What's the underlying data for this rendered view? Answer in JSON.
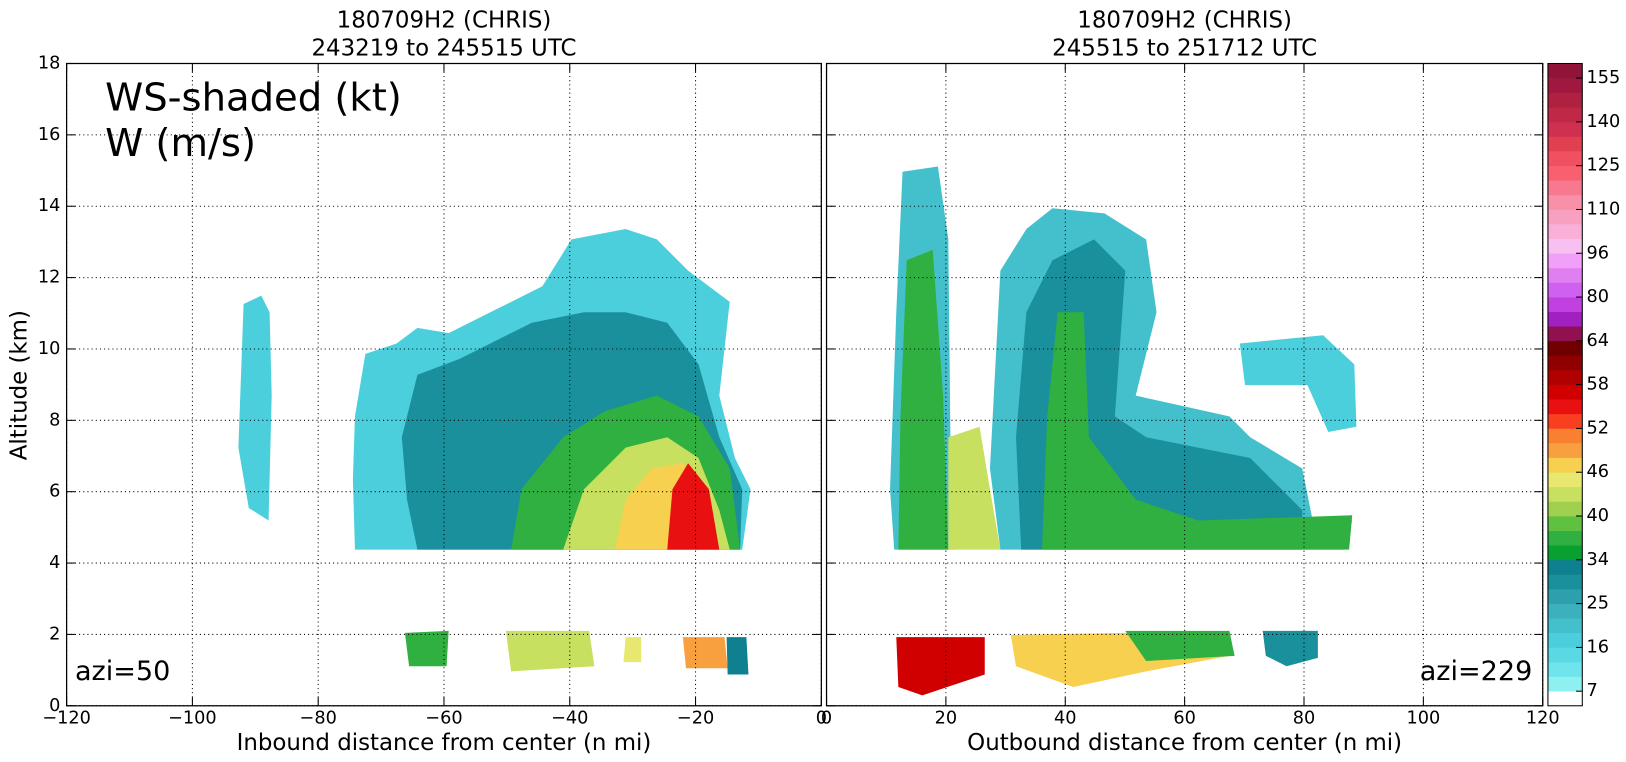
{
  "chart_data": [
    {
      "type": "contour",
      "title": [
        "180709H2 (CHRIS)",
        "243219 to 245515 UTC"
      ],
      "xlabel": "Inbound distance from center (n mi)",
      "ylabel": "Altitude (km)",
      "legend_text": [
        "WS-shaded (kt)",
        "W (m/s)"
      ],
      "annotation": "azi=50",
      "xlim": [
        -120,
        0
      ],
      "xticks": [
        {
          "value": -120,
          "label": "−120"
        },
        {
          "value": -100,
          "label": "−100"
        },
        {
          "value": -80,
          "label": "−80"
        },
        {
          "value": -60,
          "label": "−60"
        },
        {
          "value": -40,
          "label": "−40"
        },
        {
          "value": -20,
          "label": "−20"
        },
        0
      ],
      "ylim": [
        0,
        18
      ],
      "yticks": [
        0,
        2,
        4,
        6,
        8,
        10,
        12,
        14,
        16,
        18
      ],
      "grid": true
    },
    {
      "type": "contour",
      "title": [
        "180709H2 (CHRIS)",
        "245515 to 251712 UTC"
      ],
      "xlabel": "Outbound distance from center (n mi)",
      "annotation": "azi=229",
      "xlim": [
        0,
        120
      ],
      "xticks": [
        0,
        20,
        40,
        60,
        80,
        100,
        120
      ],
      "ylim": [
        0,
        18
      ],
      "yticks": [
        0,
        2,
        4,
        6,
        8,
        10,
        12,
        14,
        16,
        18
      ],
      "grid": true,
      "colorbar": {
        "ticks": [
          7,
          16,
          25,
          34,
          40,
          46,
          52,
          58,
          64,
          80,
          96,
          110,
          125,
          140,
          155
        ],
        "colors": [
          "#ffffff",
          "#8ff0f0",
          "#6fe4ec",
          "#5ad8e4",
          "#4ccfdc",
          "#44c0cc",
          "#3cb0bc",
          "#2ca0ac",
          "#1a909c",
          "#0e8090",
          "#08a030",
          "#30b040",
          "#60c040",
          "#a0d050",
          "#c8e060",
          "#e8e870",
          "#f8d050",
          "#f8a040",
          "#f88030",
          "#f84020",
          "#e81010",
          "#d00000",
          "#b00000",
          "#900000",
          "#700000",
          "#901050",
          "#a020c0",
          "#c040e0",
          "#d060f0",
          "#e080f0",
          "#f0a0f8",
          "#f8c0f0",
          "#f8b0d8",
          "#f8a0c0",
          "#f890a8",
          "#f87890",
          "#f86070",
          "#f05060",
          "#e04050",
          "#d03050",
          "#c02848",
          "#b02040",
          "#a01840",
          "#901438"
        ]
      }
    }
  ]
}
